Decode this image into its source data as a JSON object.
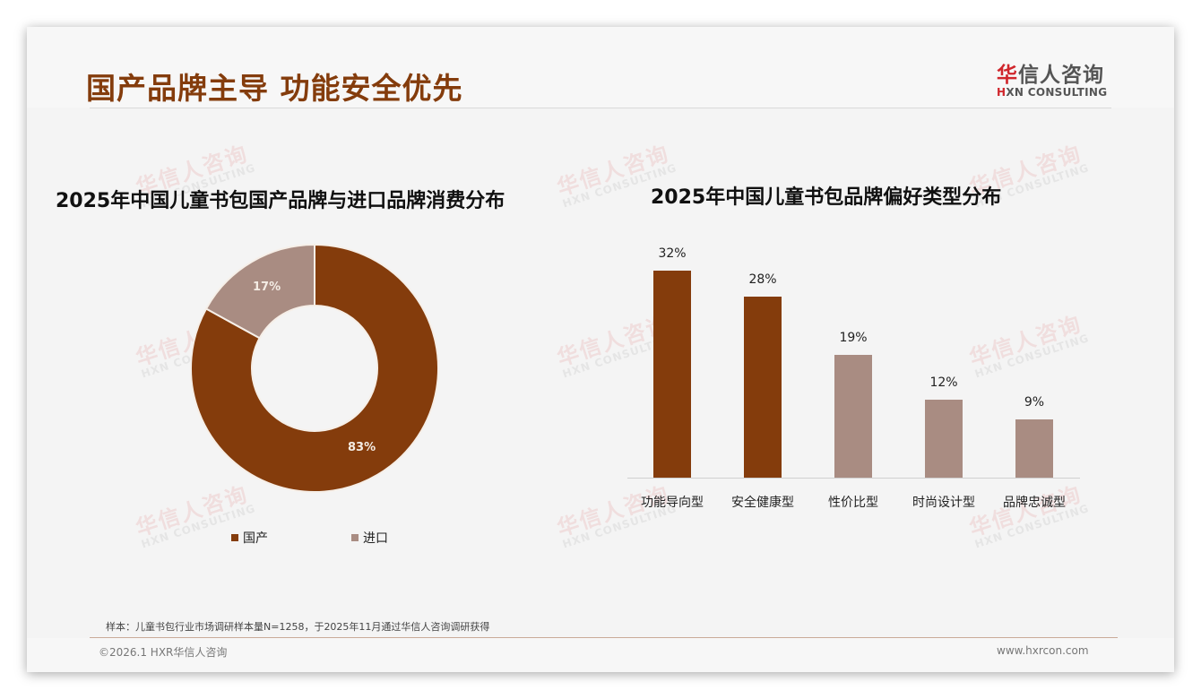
{
  "header": {
    "title": "国产品牌主导 功能安全优先",
    "logo_cn_first": "华",
    "logo_cn_rest": "信人咨询",
    "logo_en_first": "H",
    "logo_en_rest": "XN CONSULTING"
  },
  "watermark": {
    "cn": "华信人咨询",
    "en": "HXN CONSULTING"
  },
  "left_chart": {
    "title": "2025年中国儿童书包国产品牌与进口品牌消费分布",
    "slices": [
      {
        "name": "国产",
        "value": 83,
        "label": "83%",
        "color": "#843c0c"
      },
      {
        "name": "进口",
        "value": 17,
        "label": "17%",
        "color": "#a98c82"
      }
    ]
  },
  "right_chart": {
    "title": "2025年中国儿童书包品牌偏好类型分布",
    "bars": [
      {
        "category": "功能导向型",
        "value": 32,
        "label": "32%",
        "color": "#843c0c"
      },
      {
        "category": "安全健康型",
        "value": 28,
        "label": "28%",
        "color": "#843c0c"
      },
      {
        "category": "性价比型",
        "value": 19,
        "label": "19%",
        "color": "#a98c82"
      },
      {
        "category": "时尚设计型",
        "value": 12,
        "label": "12%",
        "color": "#a98c82"
      },
      {
        "category": "品牌忠诚型",
        "value": 9,
        "label": "9%",
        "color": "#a98c82"
      }
    ]
  },
  "footer": {
    "note": "样本：儿童书包行业市场调研样本量N=1258，于2025年11月通过华信人咨询调研获得",
    "copyright": "©2026.1 HXR华信人咨询",
    "website": "www.hxrcon.com"
  },
  "chart_data": [
    {
      "type": "pie",
      "title": "2025年中国儿童书包国产品牌与进口品牌消费分布",
      "categories": [
        "国产",
        "进口"
      ],
      "values": [
        83,
        17
      ],
      "unit": "%",
      "donut": true,
      "legend_position": "bottom"
    },
    {
      "type": "bar",
      "title": "2025年中国儿童书包品牌偏好类型分布",
      "categories": [
        "功能导向型",
        "安全健康型",
        "性价比型",
        "时尚设计型",
        "品牌忠诚型"
      ],
      "values": [
        32,
        28,
        19,
        12,
        9
      ],
      "unit": "%",
      "xlabel": "",
      "ylabel": "",
      "grid": false,
      "data_labels": true
    }
  ]
}
